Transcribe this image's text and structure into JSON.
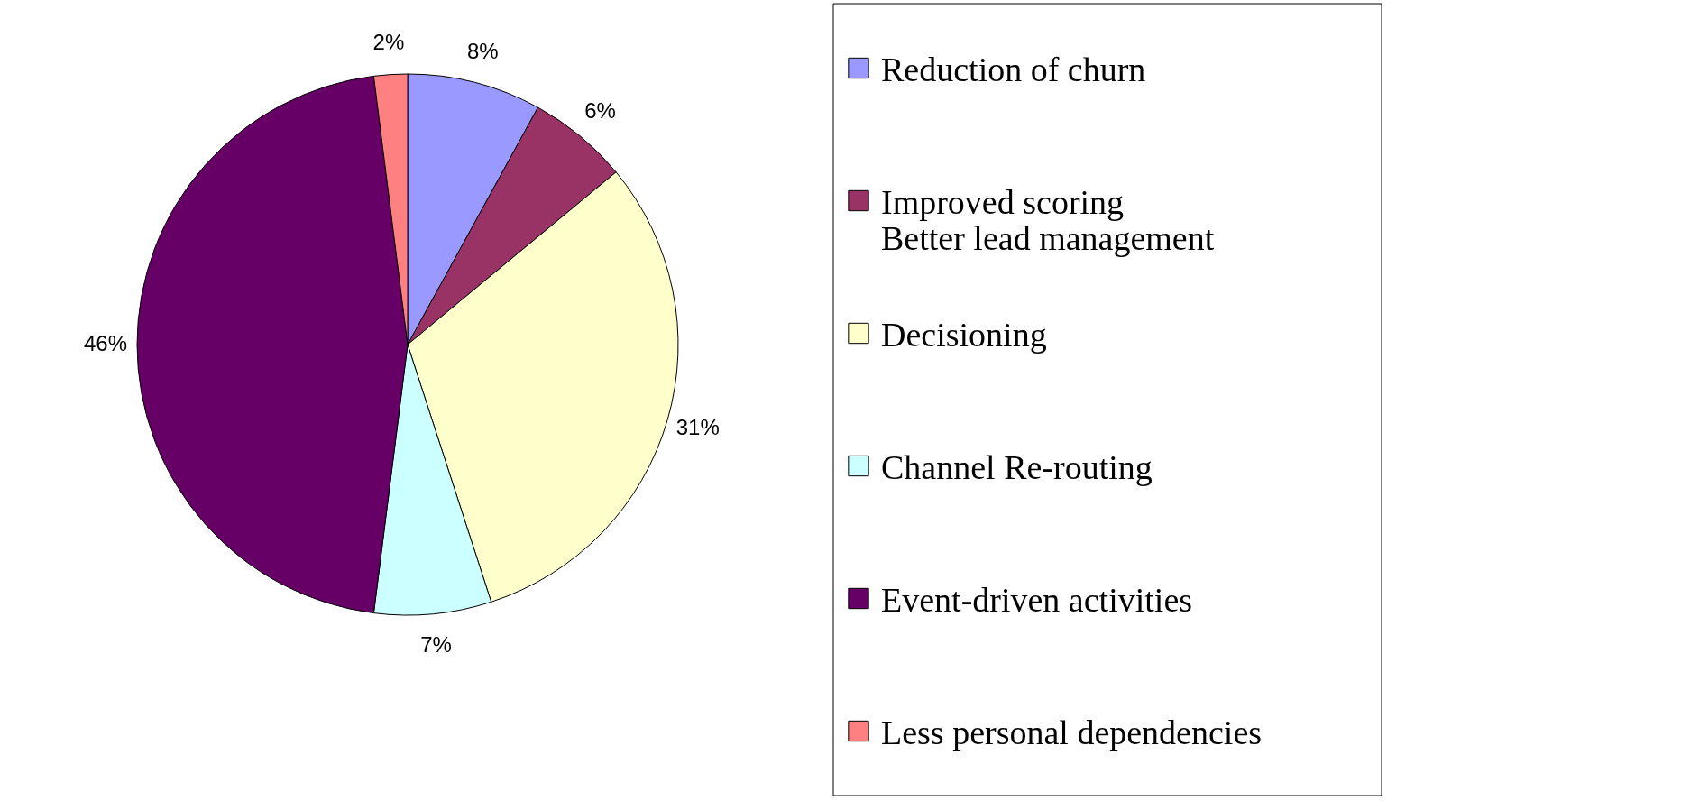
{
  "chart_data": {
    "type": "pie",
    "categories": [
      "Reduction of churn",
      "Improved scoring\nBetter lead management",
      "Decisioning",
      "Channel Re-routing",
      "Event-driven activities",
      "Less personal dependencies"
    ],
    "values": [
      8,
      6,
      31,
      7,
      46,
      2
    ],
    "value_labels": [
      "8%",
      "6%",
      "31%",
      "7%",
      "46%",
      "2%"
    ],
    "colors": [
      "#9999ff",
      "#993366",
      "#ffffcc",
      "#ccffff",
      "#660066",
      "#ff8080"
    ],
    "legend": "right"
  }
}
